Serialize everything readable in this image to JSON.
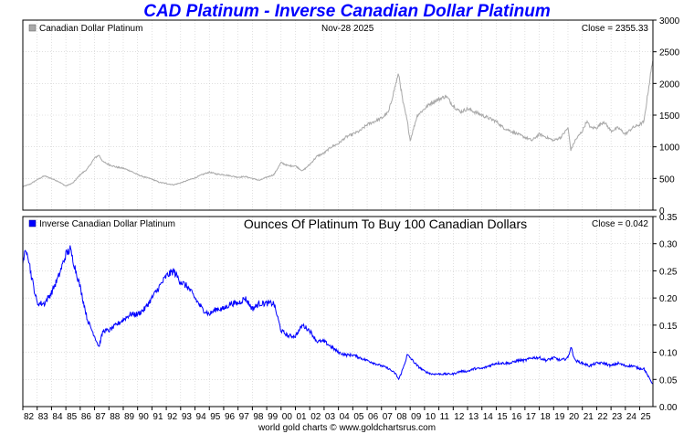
{
  "chart_data": [
    {
      "type": "line",
      "title": "CAD Platinum - Inverse Canadian Dollar Platinum",
      "legend": "Canadian Dollar Platinum",
      "date_label": "Nov-28  2025",
      "close_label": "Close = 2355.33",
      "ylim": [
        0,
        3000
      ],
      "yticks": [
        0,
        500,
        1000,
        1500,
        2000,
        2500,
        3000
      ],
      "ytick_labels": [
        "0",
        "500",
        "1000",
        "1500",
        "2000",
        "2500",
        "3000"
      ],
      "color": "#a9a9a9",
      "x": [
        1982.0,
        1982.5,
        1983.0,
        1983.5,
        1984.0,
        1984.5,
        1985.0,
        1985.5,
        1986.0,
        1986.5,
        1987.0,
        1987.3,
        1987.6,
        1988.0,
        1988.5,
        1989.0,
        1989.5,
        1990.0,
        1990.5,
        1991.0,
        1991.5,
        1992.0,
        1992.5,
        1993.0,
        1993.5,
        1994.0,
        1994.5,
        1995.0,
        1995.5,
        1996.0,
        1996.5,
        1997.0,
        1997.5,
        1998.0,
        1998.5,
        1999.0,
        1999.5,
        2000.0,
        2000.5,
        2001.0,
        2001.5,
        2002.0,
        2002.5,
        2003.0,
        2003.5,
        2004.0,
        2004.5,
        2005.0,
        2005.5,
        2006.0,
        2006.5,
        2007.0,
        2007.5,
        2008.0,
        2008.2,
        2008.5,
        2008.8,
        2009.0,
        2009.5,
        2010.0,
        2010.5,
        2011.0,
        2011.5,
        2012.0,
        2012.5,
        2013.0,
        2013.5,
        2014.0,
        2014.5,
        2015.0,
        2015.5,
        2016.0,
        2016.5,
        2017.0,
        2017.5,
        2018.0,
        2018.5,
        2019.0,
        2019.5,
        2020.0,
        2020.2,
        2020.5,
        2021.0,
        2021.3,
        2021.6,
        2022.0,
        2022.5,
        2023.0,
        2023.5,
        2024.0,
        2024.5,
        2025.0,
        2025.3,
        2025.6,
        2025.9
      ],
      "values": [
        370,
        410,
        480,
        540,
        500,
        450,
        380,
        430,
        560,
        650,
        820,
        870,
        760,
        720,
        680,
        660,
        620,
        560,
        520,
        490,
        440,
        420,
        400,
        430,
        470,
        510,
        560,
        600,
        570,
        560,
        540,
        520,
        530,
        500,
        470,
        520,
        560,
        750,
        700,
        700,
        620,
        720,
        850,
        900,
        1000,
        1050,
        1150,
        1200,
        1250,
        1350,
        1400,
        1450,
        1550,
        2000,
        2150,
        1700,
        1400,
        1100,
        1500,
        1600,
        1700,
        1750,
        1800,
        1650,
        1550,
        1600,
        1550,
        1500,
        1450,
        1400,
        1300,
        1250,
        1200,
        1150,
        1100,
        1200,
        1150,
        1100,
        1150,
        1300,
        950,
        1100,
        1250,
        1400,
        1300,
        1300,
        1400,
        1250,
        1300,
        1200,
        1300,
        1350,
        1400,
        1900,
        2355
      ]
    },
    {
      "type": "line",
      "legend": "Inverse Canadian Dollar Platinum",
      "subtitle": "Ounces Of Platinum To Buy 100 Canadian Dollars",
      "close_label": "Close = 0.042",
      "ylim": [
        0,
        0.35
      ],
      "yticks": [
        0,
        0.05,
        0.1,
        0.15,
        0.2,
        0.25,
        0.3,
        0.35
      ],
      "ytick_labels": [
        "0.00",
        "0.05",
        "0.10",
        "0.15",
        "0.20",
        "0.25",
        "0.30",
        "0.35"
      ],
      "color": "#0000ff",
      "x": [
        1982.0,
        1982.3,
        1982.6,
        1983.0,
        1983.5,
        1984.0,
        1984.5,
        1985.0,
        1985.3,
        1985.6,
        1986.0,
        1986.5,
        1987.0,
        1987.3,
        1987.6,
        1988.0,
        1988.5,
        1989.0,
        1989.5,
        1990.0,
        1990.5,
        1991.0,
        1991.5,
        1992.0,
        1992.5,
        1993.0,
        1993.5,
        1994.0,
        1994.5,
        1995.0,
        1995.5,
        1996.0,
        1996.5,
        1997.0,
        1997.5,
        1998.0,
        1998.5,
        1999.0,
        1999.5,
        2000.0,
        2000.5,
        2001.0,
        2001.5,
        2002.0,
        2002.5,
        2003.0,
        2003.5,
        2004.0,
        2004.5,
        2005.0,
        2005.5,
        2006.0,
        2006.5,
        2007.0,
        2007.5,
        2008.0,
        2008.2,
        2008.5,
        2008.8,
        2009.0,
        2009.5,
        2010.0,
        2010.5,
        2011.0,
        2011.5,
        2012.0,
        2012.5,
        2013.0,
        2013.5,
        2014.0,
        2014.5,
        2015.0,
        2015.5,
        2016.0,
        2016.5,
        2017.0,
        2017.5,
        2018.0,
        2018.5,
        2019.0,
        2019.5,
        2020.0,
        2020.2,
        2020.5,
        2021.0,
        2021.5,
        2022.0,
        2022.5,
        2023.0,
        2023.5,
        2024.0,
        2024.5,
        2025.0,
        2025.3,
        2025.6,
        2025.9
      ],
      "values": [
        0.27,
        0.29,
        0.24,
        0.19,
        0.19,
        0.21,
        0.24,
        0.28,
        0.29,
        0.26,
        0.22,
        0.16,
        0.13,
        0.11,
        0.14,
        0.14,
        0.15,
        0.16,
        0.17,
        0.17,
        0.18,
        0.2,
        0.22,
        0.24,
        0.25,
        0.23,
        0.22,
        0.2,
        0.18,
        0.17,
        0.18,
        0.18,
        0.19,
        0.19,
        0.2,
        0.18,
        0.19,
        0.19,
        0.19,
        0.14,
        0.13,
        0.13,
        0.15,
        0.14,
        0.12,
        0.12,
        0.11,
        0.1,
        0.095,
        0.095,
        0.09,
        0.085,
        0.08,
        0.075,
        0.07,
        0.06,
        0.05,
        0.07,
        0.095,
        0.09,
        0.075,
        0.065,
        0.06,
        0.06,
        0.06,
        0.06,
        0.065,
        0.065,
        0.07,
        0.07,
        0.075,
        0.08,
        0.08,
        0.08,
        0.085,
        0.085,
        0.09,
        0.09,
        0.085,
        0.09,
        0.085,
        0.09,
        0.11,
        0.085,
        0.08,
        0.075,
        0.08,
        0.08,
        0.075,
        0.08,
        0.075,
        0.075,
        0.07,
        0.07,
        0.055,
        0.042
      ]
    }
  ],
  "xaxis": {
    "start": 1982,
    "end": 2025.92,
    "tick_labels": [
      "82",
      "83",
      "84",
      "85",
      "86",
      "87",
      "88",
      "89",
      "90",
      "91",
      "92",
      "93",
      "94",
      "95",
      "96",
      "97",
      "98",
      "99",
      "00",
      "01",
      "02",
      "03",
      "04",
      "05",
      "06",
      "07",
      "08",
      "09",
      "10",
      "11",
      "12",
      "13",
      "14",
      "15",
      "16",
      "17",
      "18",
      "19",
      "20",
      "21",
      "22",
      "23",
      "24",
      "25"
    ]
  },
  "footer": "world gold charts © www.goldchartsrus.com"
}
